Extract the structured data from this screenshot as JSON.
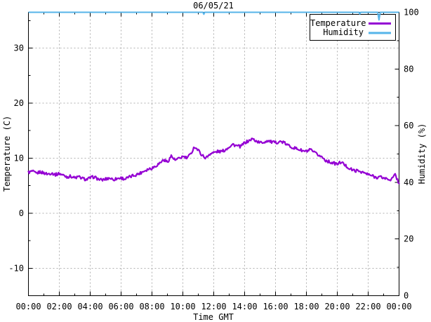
{
  "chart_data": {
    "type": "line",
    "title": "06/05/21",
    "xlabel": "Time GMT",
    "ylabel": "Temperature (C)",
    "y2label": "Humidity (%)",
    "xlim_hours": [
      0,
      24
    ],
    "ylim": [
      -15,
      36.5
    ],
    "y2lim": [
      0,
      100
    ],
    "x_major_tick_hours": [
      0,
      2,
      4,
      6,
      8,
      10,
      12,
      14,
      16,
      18,
      20,
      22,
      24
    ],
    "x_tick_labels": [
      "00:00",
      "02:00",
      "04:00",
      "06:00",
      "08:00",
      "10:00",
      "12:00",
      "14:00",
      "16:00",
      "18:00",
      "20:00",
      "22:00",
      "00:00"
    ],
    "x_minor_tick_hours": [
      1,
      3,
      5,
      7,
      9,
      11,
      13,
      15,
      17,
      19,
      21,
      23
    ],
    "y_major_ticks": [
      30,
      20,
      10,
      0,
      -10
    ],
    "y_minor_ticks": [
      35,
      25,
      15,
      5,
      -5
    ],
    "y2_major_ticks": [
      100,
      80,
      60,
      40,
      20,
      0
    ],
    "y2_minor_ticks": [
      90,
      70,
      50,
      30,
      10
    ],
    "grid": {
      "style": "dashed",
      "vertical_at": "x_major_ticks",
      "horizontal_at": "y_major_ticks"
    },
    "legend_position": "top-right",
    "series": [
      {
        "name": "Temperature",
        "axis": "y",
        "color": "#9400d3",
        "x_start_hours": 0,
        "x_step_hours": 0.25,
        "values": [
          7.4,
          7.6,
          7.2,
          7.5,
          7.3,
          7.1,
          7.3,
          7.0,
          7.2,
          6.9,
          6.6,
          6.7,
          6.4,
          6.6,
          6.3,
          6.1,
          6.4,
          6.6,
          6.2,
          6.0,
          6.2,
          6.4,
          6.1,
          6.3,
          6.4,
          6.2,
          6.5,
          6.8,
          7.0,
          7.3,
          7.7,
          8.0,
          8.2,
          8.6,
          9.1,
          9.7,
          9.3,
          10.4,
          9.6,
          9.9,
          10.3,
          10.0,
          10.7,
          12.1,
          11.4,
          10.5,
          10.0,
          10.8,
          11.0,
          11.2,
          11.2,
          11.5,
          12.1,
          12.5,
          12.2,
          12.1,
          12.8,
          13.1,
          13.5,
          13.1,
          12.8,
          12.9,
          13.2,
          12.9,
          12.8,
          13.0,
          12.9,
          12.4,
          12.1,
          11.8,
          11.6,
          11.3,
          11.2,
          11.5,
          11.0,
          10.6,
          10.2,
          9.6,
          9.3,
          9.1,
          8.9,
          9.3,
          8.7,
          8.2,
          7.8,
          7.7,
          7.6,
          7.3,
          7.0,
          6.8,
          6.5,
          6.6,
          6.4,
          6.2,
          6.1,
          7.0,
          5.4
        ]
      },
      {
        "name": "Humidity",
        "axis": "y2",
        "color": "#56b4e9",
        "points_time_value": [
          [
            0,
            100
          ],
          [
            11.3,
            100
          ],
          [
            11.36,
            99.3
          ],
          [
            11.42,
            100
          ],
          [
            21.4,
            100
          ],
          [
            21.46,
            99.4
          ],
          [
            21.52,
            100
          ],
          [
            22.62,
            100
          ],
          [
            22.7,
            97.3
          ],
          [
            22.78,
            100
          ],
          [
            24,
            100
          ]
        ]
      }
    ]
  }
}
